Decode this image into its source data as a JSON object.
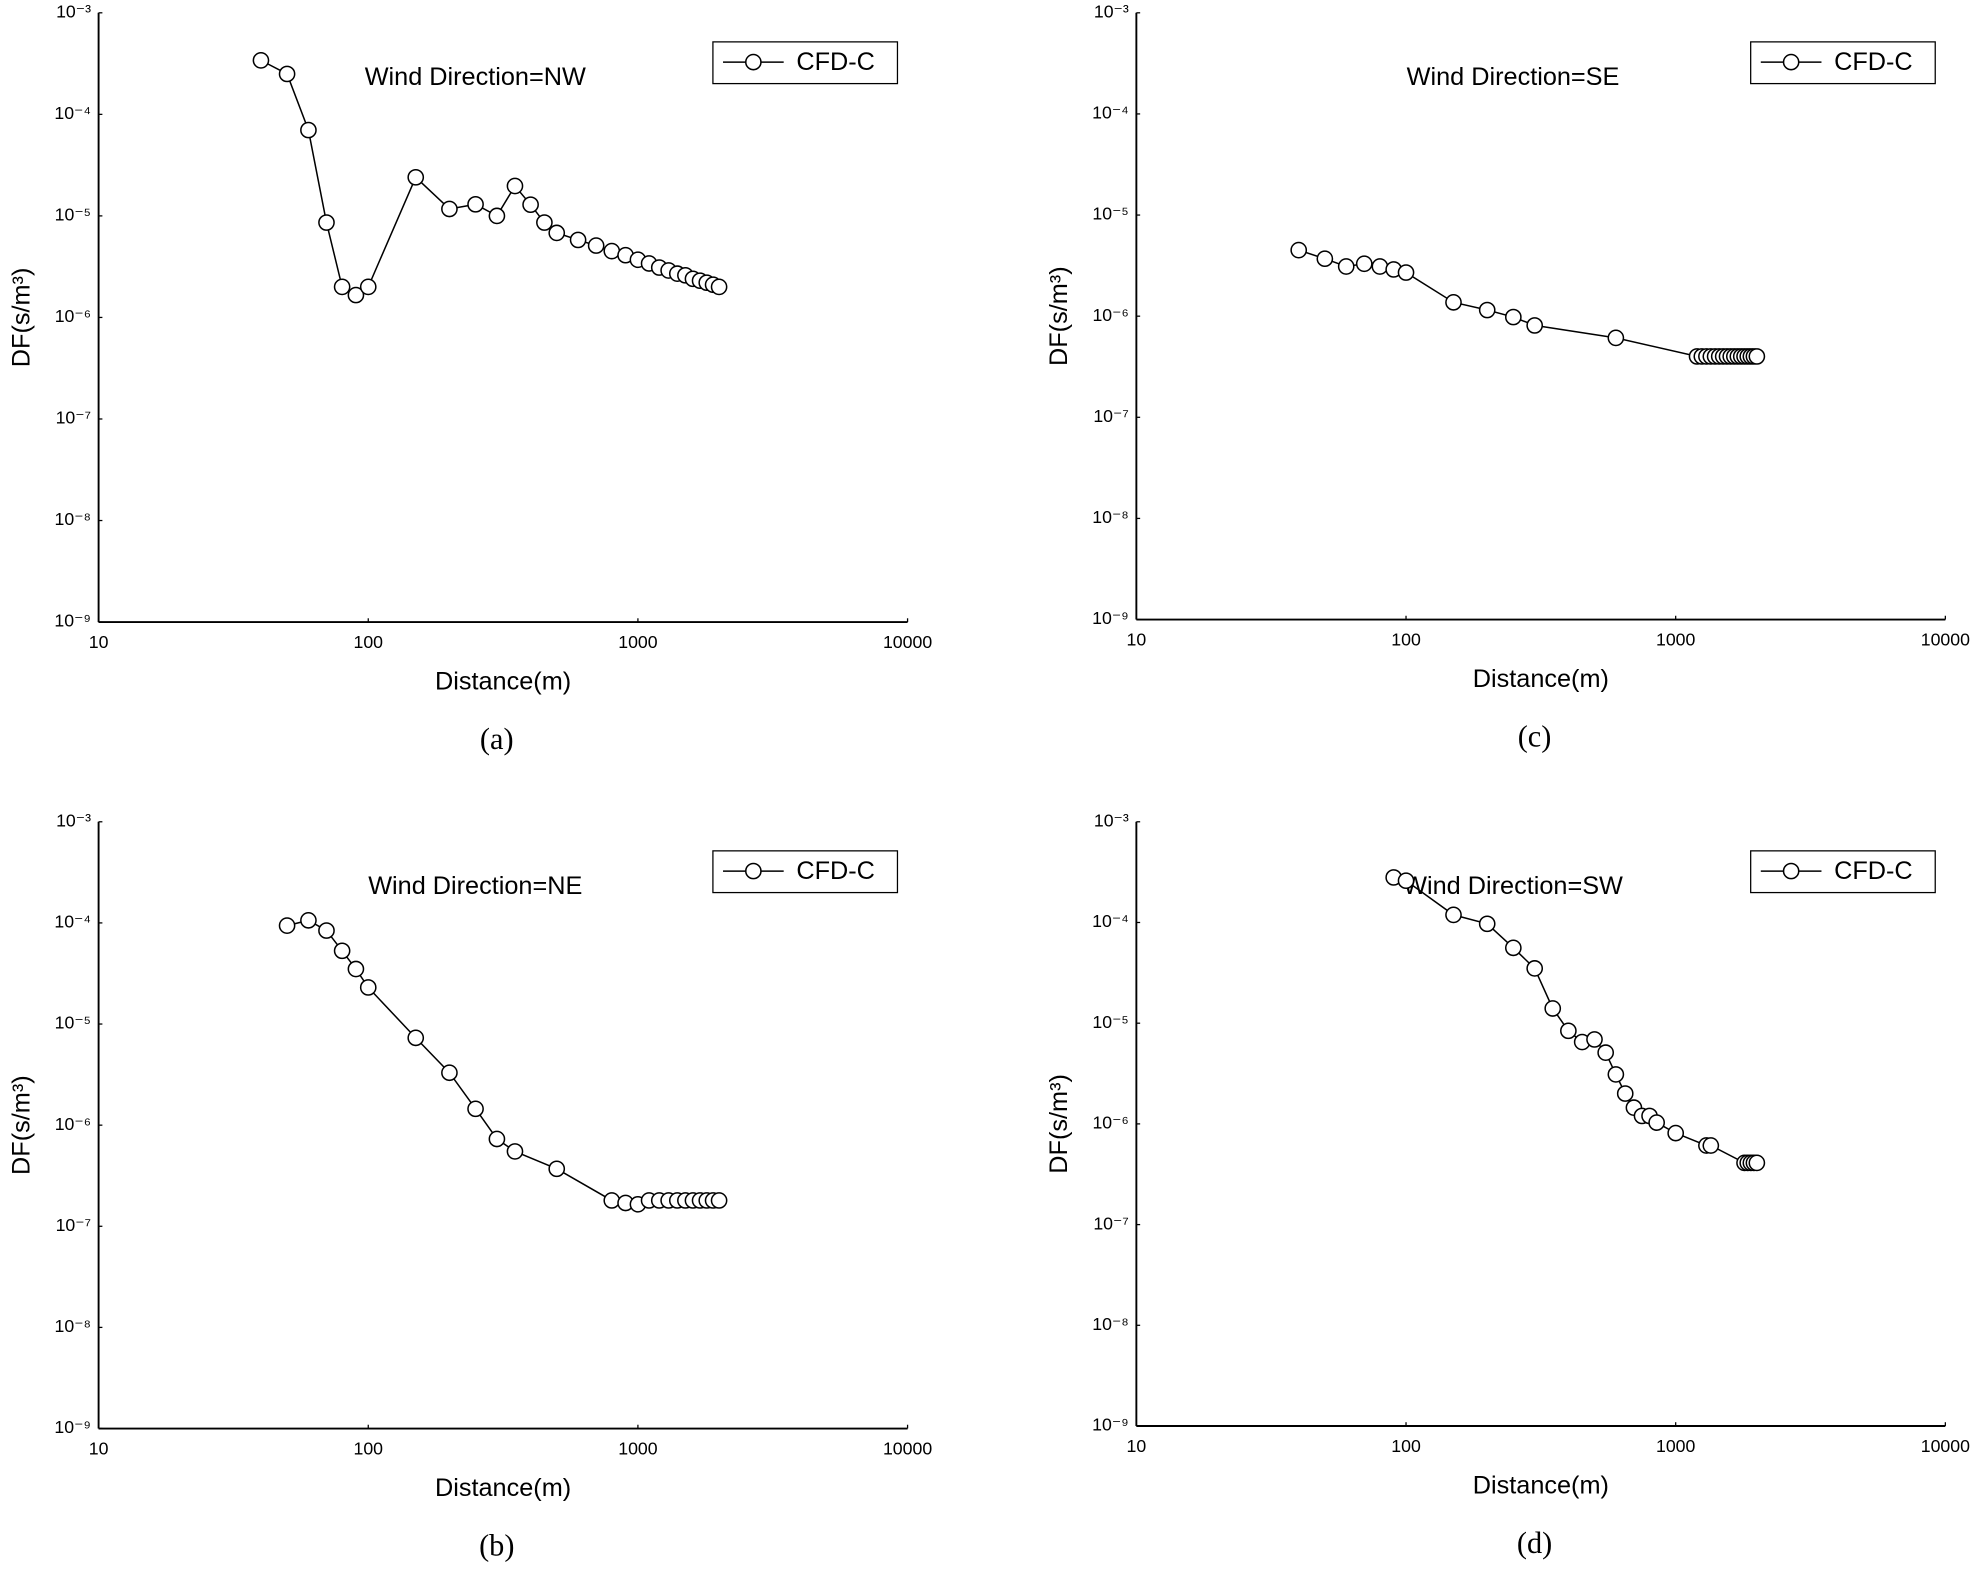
{
  "chart_data": [
    {
      "type": "line",
      "title": "Wind Direction=NW",
      "caption": "(a)",
      "xlabel": "Distance(m)",
      "ylabel": "DF(s/m³)",
      "xscale": "log",
      "yscale": "log",
      "legend": "upper right",
      "grid": false,
      "xlim": [
        10,
        10000
      ],
      "xticks": [
        10,
        100,
        1000,
        10000
      ],
      "ylim": [
        1e-09,
        0.001
      ],
      "yticks": [
        {
          "value": 1e-09,
          "label": "10⁻⁹"
        },
        {
          "value": 1e-08,
          "label": "10⁻⁸"
        },
        {
          "value": 1e-07,
          "label": "10⁻⁷"
        },
        {
          "value": 1e-06,
          "label": "10⁻⁶"
        },
        {
          "value": 1e-05,
          "label": "10⁻⁵"
        },
        {
          "value": 0.0001,
          "label": "10⁻⁴"
        },
        {
          "value": 0.001,
          "label": "10⁻³"
        }
      ],
      "x": [
        40,
        50,
        60,
        70,
        80,
        90,
        100,
        150,
        200,
        250,
        300,
        350,
        400,
        450,
        500,
        600,
        700,
        800,
        900,
        1000,
        1100,
        1200,
        1300,
        1400,
        1500,
        1600,
        1700,
        1800,
        1900,
        2000
      ],
      "series": [
        {
          "name": "CFD-C",
          "color": "#000000",
          "values": [
            0.00034,
            0.00025,
            7e-05,
            8.6e-06,
            2e-06,
            1.66e-06,
            2e-06,
            2.4e-05,
            1.17e-05,
            1.3e-05,
            1e-05,
            1.97e-05,
            1.29e-05,
            8.6e-06,
            6.8e-06,
            5.8e-06,
            5.1e-06,
            4.5e-06,
            4.1e-06,
            3.7e-06,
            3.4e-06,
            3.1e-06,
            2.9e-06,
            2.7e-06,
            2.6e-06,
            2.4e-06,
            2.3e-06,
            2.2e-06,
            2.1e-06,
            2e-06
          ]
        }
      ]
    },
    {
      "type": "line",
      "title": "Wind Direction=SE",
      "caption": "(c)",
      "xlabel": "Distance(m)",
      "ylabel": "DF(s/m³)",
      "xscale": "log",
      "yscale": "log",
      "legend": "upper right",
      "grid": false,
      "xlim": [
        10,
        10000
      ],
      "xticks": [
        10,
        100,
        1000,
        10000
      ],
      "ylim": [
        1e-09,
        0.001
      ],
      "yticks": [
        {
          "value": 1e-09,
          "label": "10⁻⁹"
        },
        {
          "value": 1e-08,
          "label": "10⁻⁸"
        },
        {
          "value": 1e-07,
          "label": "10⁻⁷"
        },
        {
          "value": 1e-06,
          "label": "10⁻⁶"
        },
        {
          "value": 1e-05,
          "label": "10⁻⁵"
        },
        {
          "value": 0.0001,
          "label": "10⁻⁴"
        },
        {
          "value": 0.001,
          "label": "10⁻³"
        }
      ],
      "x": [
        40,
        50,
        60,
        70,
        80,
        90,
        100,
        150,
        200,
        250,
        300,
        600,
        1200,
        1250,
        1300,
        1350,
        1400,
        1450,
        1500,
        1550,
        1600,
        1650,
        1700,
        1750,
        1800,
        1850,
        1900,
        1950,
        2000
      ],
      "series": [
        {
          "name": "CFD-C",
          "color": "#000000",
          "values": [
            4.5e-06,
            3.7e-06,
            3.1e-06,
            3.3e-06,
            3.1e-06,
            2.9e-06,
            2.7e-06,
            1.37e-06,
            1.15e-06,
            9.8e-07,
            8.1e-07,
            6.1e-07,
            4e-07,
            4e-07,
            4e-07,
            4e-07,
            4e-07,
            4e-07,
            4e-07,
            4e-07,
            4e-07,
            4e-07,
            4e-07,
            4e-07,
            4e-07,
            4e-07,
            4e-07,
            4e-07,
            4e-07
          ]
        }
      ]
    },
    {
      "type": "line",
      "title": "Wind Direction=NE",
      "caption": "(b)",
      "xlabel": "Distance(m)",
      "ylabel": "DF(s/m³)",
      "xscale": "log",
      "yscale": "log",
      "legend": "upper right",
      "grid": false,
      "xlim": [
        10,
        10000
      ],
      "xticks": [
        10,
        100,
        1000,
        10000
      ],
      "ylim": [
        1e-09,
        0.001
      ],
      "yticks": [
        {
          "value": 1e-09,
          "label": "10⁻⁹"
        },
        {
          "value": 1e-08,
          "label": "10⁻⁸"
        },
        {
          "value": 1e-07,
          "label": "10⁻⁷"
        },
        {
          "value": 1e-06,
          "label": "10⁻⁶"
        },
        {
          "value": 1e-05,
          "label": "10⁻⁵"
        },
        {
          "value": 0.0001,
          "label": "10⁻⁴"
        },
        {
          "value": 0.001,
          "label": "10⁻³"
        }
      ],
      "x": [
        50,
        60,
        70,
        80,
        90,
        100,
        150,
        200,
        250,
        300,
        350,
        500,
        800,
        900,
        1000,
        1100,
        1200,
        1300,
        1400,
        1500,
        1600,
        1700,
        1800,
        1900,
        2000
      ],
      "series": [
        {
          "name": "CFD-C",
          "color": "#000000",
          "values": [
            9.4e-05,
            0.000106,
            8.4e-05,
            5.3e-05,
            3.5e-05,
            2.3e-05,
            7.3e-06,
            3.3e-06,
            1.45e-06,
            7.3e-07,
            5.5e-07,
            3.7e-07,
            1.8e-07,
            1.7e-07,
            1.65e-07,
            1.8e-07,
            1.8e-07,
            1.8e-07,
            1.8e-07,
            1.8e-07,
            1.8e-07,
            1.8e-07,
            1.8e-07,
            1.8e-07,
            1.8e-07
          ]
        }
      ]
    },
    {
      "type": "line",
      "title": "Wind Direction=SW",
      "caption": "(d)",
      "xlabel": "Distance(m)",
      "ylabel": "DF(s/m³)",
      "xscale": "log",
      "yscale": "log",
      "legend": "upper right",
      "grid": false,
      "xlim": [
        10,
        10000
      ],
      "xticks": [
        10,
        100,
        1000,
        10000
      ],
      "ylim": [
        1e-09,
        0.001
      ],
      "yticks": [
        {
          "value": 1e-09,
          "label": "10⁻⁹"
        },
        {
          "value": 1e-08,
          "label": "10⁻⁸"
        },
        {
          "value": 1e-07,
          "label": "10⁻⁷"
        },
        {
          "value": 1e-06,
          "label": "10⁻⁶"
        },
        {
          "value": 1e-05,
          "label": "10⁻⁵"
        },
        {
          "value": 0.0001,
          "label": "10⁻⁴"
        },
        {
          "value": 0.001,
          "label": "10⁻³"
        }
      ],
      "x": [
        90,
        100,
        150,
        200,
        250,
        300,
        350,
        400,
        450,
        500,
        550,
        600,
        650,
        700,
        750,
        800,
        850,
        1000,
        1300,
        1350,
        1800,
        1850,
        1900,
        1950,
        2000
      ],
      "series": [
        {
          "name": "CFD-C",
          "color": "#000000",
          "values": [
            0.00028,
            0.00026,
            0.000119,
            9.7e-05,
            5.6e-05,
            3.5e-05,
            1.4e-05,
            8.4e-06,
            6.5e-06,
            6.9e-06,
            5.1e-06,
            3.1e-06,
            2e-06,
            1.45e-06,
            1.2e-06,
            1.2e-06,
            1.03e-06,
            8.1e-07,
            6.1e-07,
            6.1e-07,
            4.1e-07,
            4.1e-07,
            4.1e-07,
            4.1e-07,
            4.1e-07
          ]
        }
      ]
    }
  ]
}
